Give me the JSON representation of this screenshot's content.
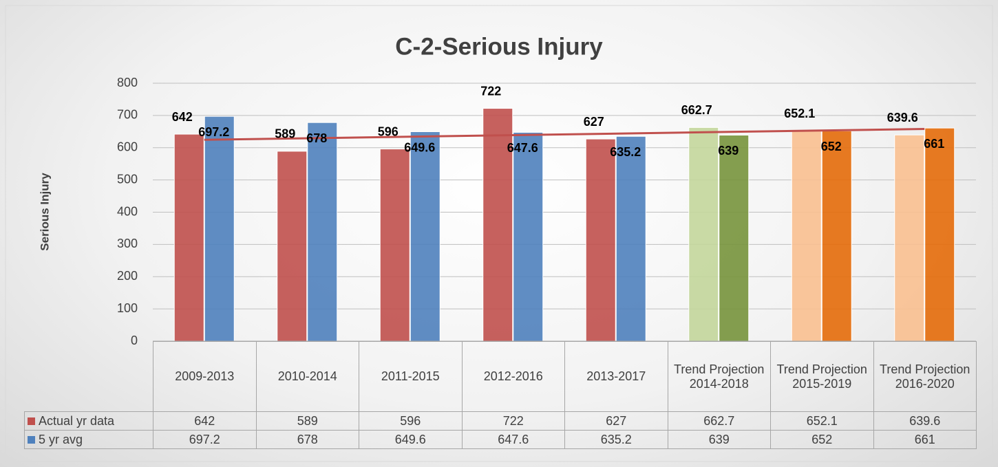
{
  "chart_data": {
    "type": "bar",
    "title": "C-2-Serious Injury",
    "y_label": "Serious Injury",
    "categories": [
      "2009-2013",
      "2010-2014",
      "2011-2015",
      "2012-2016",
      "2013-2017",
      "Trend Projection 2014-2018",
      "Trend Projection 2015-2019",
      "Trend Projection 2016-2020"
    ],
    "series": [
      {
        "name": "Actual yr data",
        "color": "#c0504d",
        "colors": [
          "#c0504d",
          "#c0504d",
          "#c0504d",
          "#c0504d",
          "#c0504d",
          "#c3d69b",
          "#fac090",
          "#fac090"
        ],
        "values": [
          642,
          589,
          596,
          722,
          627,
          662.7,
          652.1,
          639.6
        ],
        "trendline": "linear",
        "trendline_color": "#c0504d"
      },
      {
        "name": "5 yr avg",
        "color": "#4f81bd",
        "colors": [
          "#4f81bd",
          "#4f81bd",
          "#4f81bd",
          "#4f81bd",
          "#4f81bd",
          "#77933c",
          "#e46c0a",
          "#e46c0a"
        ],
        "values": [
          697.2,
          678,
          649.6,
          647.6,
          635.2,
          639,
          652,
          661
        ]
      }
    ],
    "ylim": [
      0,
      800
    ],
    "yticks": [
      0,
      100,
      200,
      300,
      400,
      500,
      600,
      700,
      800
    ],
    "grid": true,
    "data_table": true
  }
}
